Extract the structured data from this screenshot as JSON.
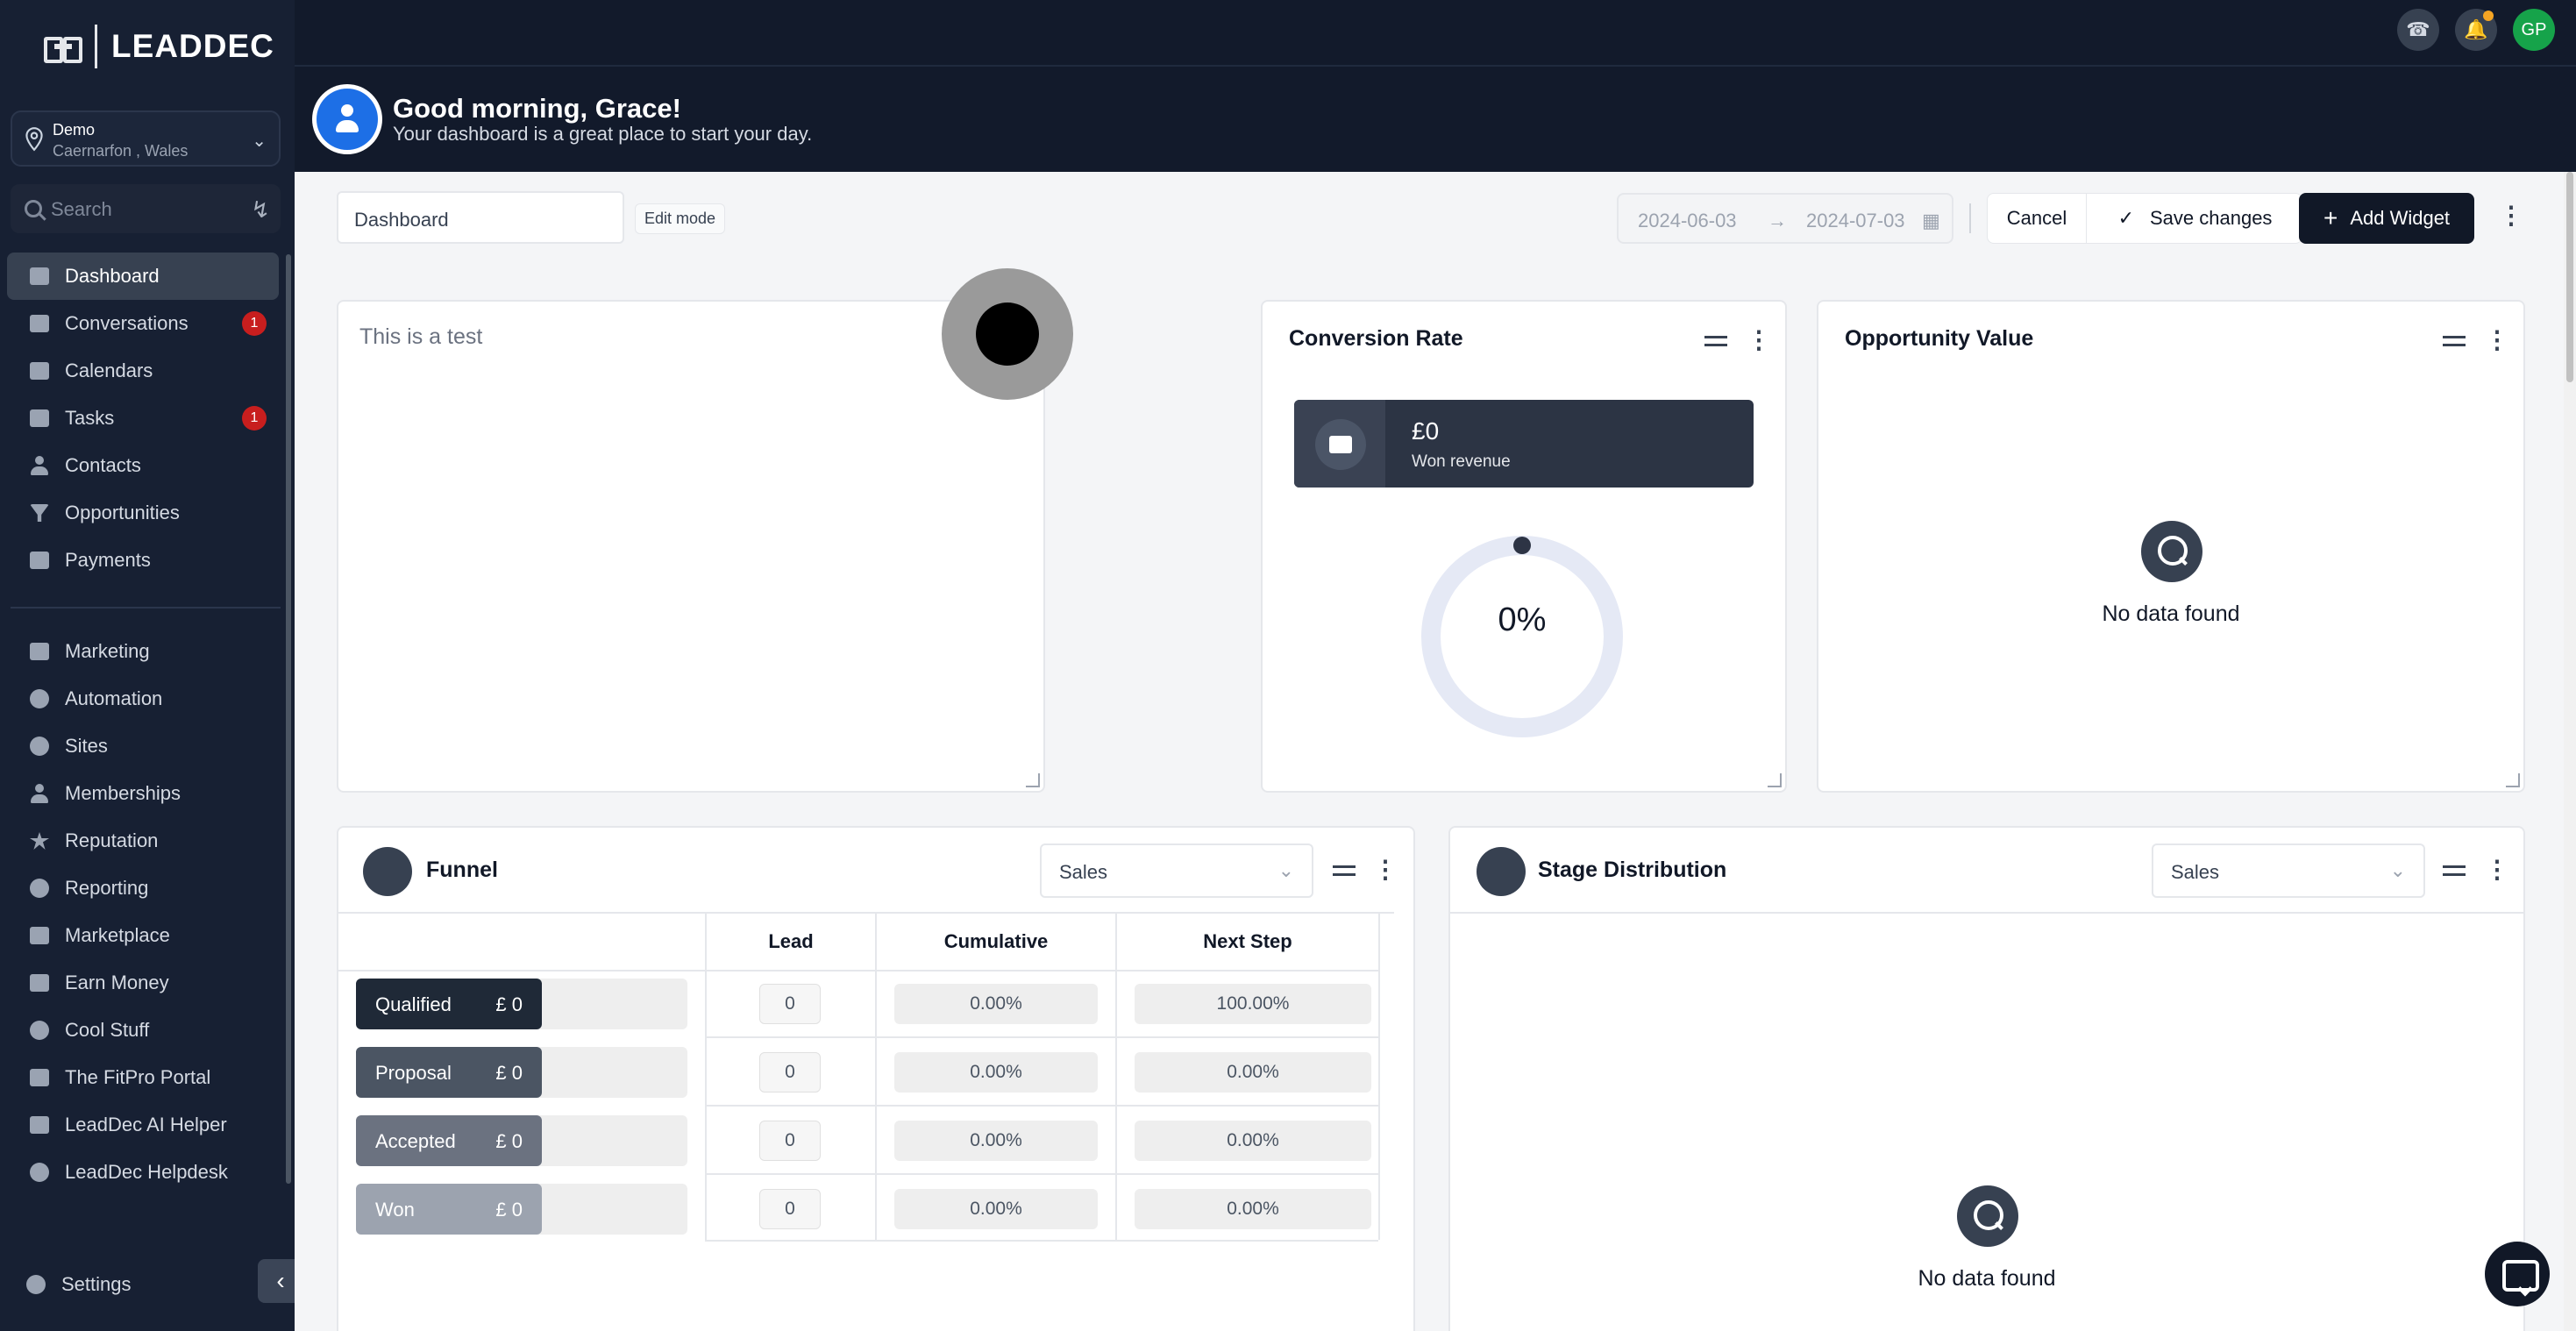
{
  "brand": {
    "name": "LEADDEC"
  },
  "location": {
    "name": "Demo",
    "sub": "Caernarfon , Wales"
  },
  "search": {
    "placeholder": "Search"
  },
  "nav": {
    "items": [
      {
        "label": "Dashboard",
        "icon": "dashboard-icon",
        "active": true
      },
      {
        "label": "Conversations",
        "icon": "chat-icon",
        "badge": "1"
      },
      {
        "label": "Calendars",
        "icon": "calendar-icon"
      },
      {
        "label": "Tasks",
        "icon": "checkbox-icon",
        "badge": "1"
      },
      {
        "label": "Contacts",
        "icon": "person-icon"
      },
      {
        "label": "Opportunities",
        "icon": "funnel-icon"
      },
      {
        "label": "Payments",
        "icon": "card-icon"
      }
    ],
    "items2": [
      {
        "label": "Marketing",
        "icon": "megaphone-icon"
      },
      {
        "label": "Automation",
        "icon": "automation-icon"
      },
      {
        "label": "Sites",
        "icon": "sites-icon"
      },
      {
        "label": "Memberships",
        "icon": "members-icon"
      },
      {
        "label": "Reputation",
        "icon": "star-icon"
      },
      {
        "label": "Reporting",
        "icon": "pie-icon"
      },
      {
        "label": "Marketplace",
        "icon": "cart-icon"
      },
      {
        "label": "Earn Money",
        "icon": "money-icon"
      },
      {
        "label": "Cool Stuff",
        "icon": "fire-icon"
      },
      {
        "label": "The FitPro Portal",
        "icon": "dumbbell-icon"
      },
      {
        "label": "LeadDec AI Helper",
        "icon": "robot-icon"
      },
      {
        "label": "LeadDec Helpdesk",
        "icon": "info-icon"
      }
    ],
    "settings": "Settings"
  },
  "topbar": {
    "avatar_initials": "GP"
  },
  "greeting": {
    "title": "Good morning, Grace!",
    "subtitle": "Your dashboard is a great place to start your day."
  },
  "toolbar": {
    "dashboard_name": "Dashboard",
    "edit_mode": "Edit mode",
    "date_start": "2024-06-03",
    "date_end": "2024-07-03",
    "cancel": "Cancel",
    "save": "Save changes",
    "add_widget": "Add Widget"
  },
  "note_widget": {
    "text": "This is a test"
  },
  "conversion": {
    "title": "Conversion Rate",
    "won_value": "£0",
    "won_label": "Won revenue",
    "rate": "0%"
  },
  "opportunity": {
    "title": "Opportunity Value",
    "empty": "No data found"
  },
  "funnel": {
    "title": "Funnel",
    "pipeline": "Sales",
    "columns": [
      "Lead",
      "Cumulative",
      "Next Step"
    ],
    "rows": [
      {
        "stage": "Qualified",
        "value": "£ 0",
        "lead": "0",
        "cumulative": "0.00%",
        "next": "100.00%",
        "color": "#1f2937"
      },
      {
        "stage": "Proposal",
        "value": "£ 0",
        "lead": "0",
        "cumulative": "0.00%",
        "next": "0.00%",
        "color": "#4b5563"
      },
      {
        "stage": "Accepted",
        "value": "£ 0",
        "lead": "0",
        "cumulative": "0.00%",
        "next": "0.00%",
        "color": "#6b7280"
      },
      {
        "stage": "Won",
        "value": "£ 0",
        "lead": "0",
        "cumulative": "0.00%",
        "next": "0.00%",
        "color": "#9ca3af"
      }
    ]
  },
  "stage_dist": {
    "title": "Stage Distribution",
    "pipeline": "Sales",
    "empty": "No data found"
  }
}
